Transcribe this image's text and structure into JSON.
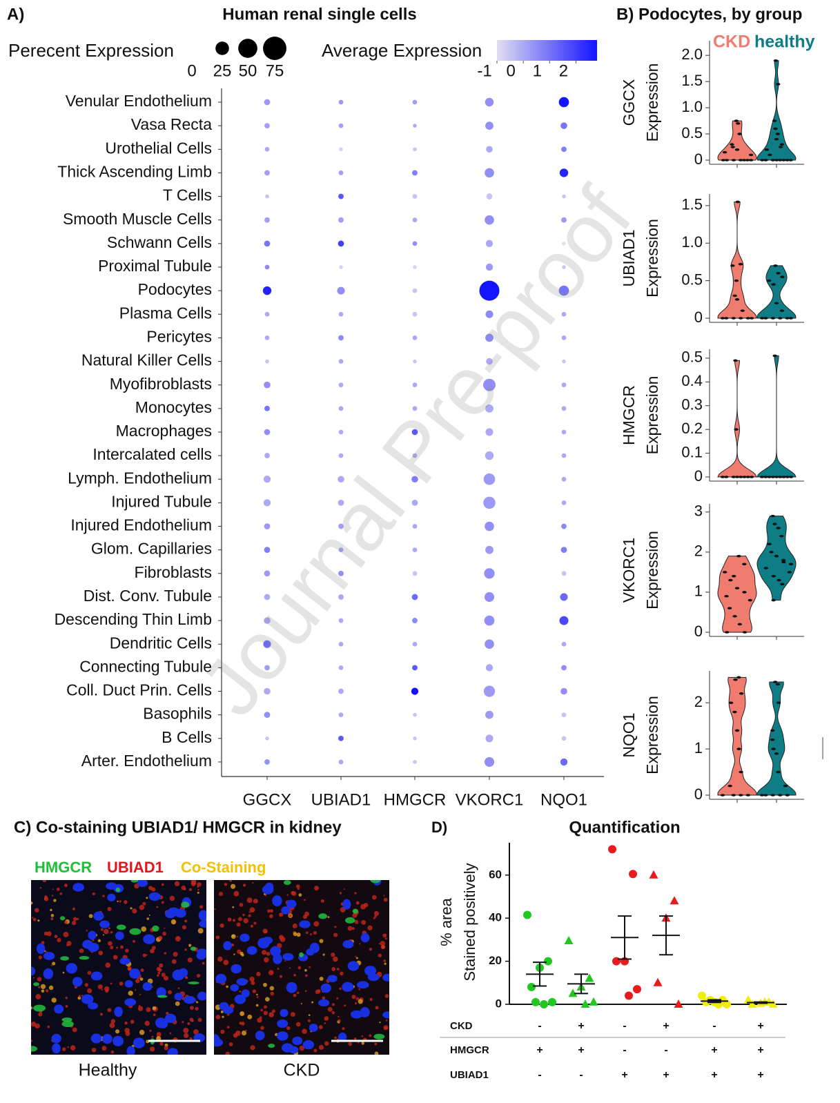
{
  "chart_data": [
    {
      "type": "dot",
      "panel": "A)",
      "title": "Human renal single cells",
      "categories": [
        "Venular Endothelium",
        "Vasa Recta",
        "Urothelial Cells",
        "Thick Ascending Limb",
        "T Cells",
        "Smooth Muscle Cells",
        "Schwann Cells",
        "Proximal Tubule",
        "Podocytes",
        "Plasma Cells",
        "Pericytes",
        "Natural Killer Cells",
        "Myofibroblasts",
        "Monocytes",
        "Macrophages",
        "Intercalated cells",
        "Lymph. Endothelium",
        "Injured Tubule",
        "Injured Endothelium",
        "Glom. Capillaries",
        "Fibroblasts",
        "Dist. Conv. Tubule",
        "Descending Thin Limb",
        "Dendritic Cells",
        "Connecting Tubule",
        "Coll. Duct Prin. Cells",
        "Basophils",
        "B Cells",
        "Arter. Endothelium"
      ],
      "series": [
        {
          "name": "GGCX",
          "values": [
            0.3,
            0.2,
            0,
            0.2,
            -0.5,
            0.2,
            1.0,
            0.6,
            2.5,
            0,
            0,
            -0.5,
            0.5,
            1.0,
            0.5,
            0,
            0,
            0,
            0.3,
            0.8,
            0.3,
            0,
            0,
            1.2,
            0.2,
            0,
            0.5,
            -0.5,
            0.4
          ],
          "sizes": [
            5,
            4,
            3,
            4,
            2,
            4,
            5,
            3,
            10,
            3,
            3,
            2,
            6,
            4,
            5,
            4,
            7,
            7,
            5,
            5,
            5,
            5,
            6,
            8,
            4,
            6,
            5,
            2,
            4
          ]
        },
        {
          "name": "UBIAD1",
          "values": [
            0.3,
            0.2,
            -0.8,
            0.2,
            1.5,
            0.2,
            2.0,
            -0.8,
            0.5,
            0,
            0.6,
            0,
            0,
            0,
            0,
            0,
            0,
            0,
            0.2,
            0.2,
            0.5,
            0,
            0,
            0,
            0,
            0,
            0,
            1.5,
            0
          ],
          "sizes": [
            3,
            3,
            2,
            3,
            4,
            4,
            5,
            2,
            8,
            3,
            4,
            3,
            3,
            3,
            3,
            3,
            6,
            5,
            4,
            3,
            4,
            4,
            3,
            3,
            3,
            4,
            3,
            4,
            3
          ]
        },
        {
          "name": "HMGCR",
          "values": [
            0.2,
            0,
            -0.5,
            0.8,
            -0.5,
            0,
            0.5,
            -0.8,
            -0.5,
            -0.5,
            0,
            -0.5,
            0,
            0,
            1.5,
            0,
            0.8,
            0,
            0,
            0,
            -0.5,
            1.2,
            0.6,
            0,
            1.5,
            2.8,
            -0.5,
            -0.5,
            -0.5
          ],
          "sizes": [
            3,
            2,
            2,
            4,
            3,
            3,
            3,
            2,
            3,
            3,
            3,
            2,
            3,
            3,
            5,
            3,
            6,
            5,
            3,
            3,
            3,
            5,
            4,
            3,
            4,
            7,
            2,
            2,
            2
          ]
        },
        {
          "name": "VKORC1",
          "values": [
            0.5,
            0.5,
            0,
            0.5,
            -0.5,
            0.5,
            0,
            0.3,
            2.8,
            0.6,
            0.6,
            0,
            0.5,
            0,
            0,
            0,
            0.3,
            0.3,
            0.5,
            0.3,
            0.5,
            0.5,
            0.5,
            0.5,
            0,
            0.3,
            0.3,
            0,
            0.5
          ],
          "sizes": [
            10,
            9,
            6,
            12,
            5,
            12,
            7,
            7,
            55,
            8,
            9,
            6,
            21,
            9,
            8,
            10,
            18,
            20,
            12,
            9,
            15,
            13,
            14,
            12,
            7,
            17,
            9,
            8,
            13
          ]
        },
        {
          "name": "NQO1",
          "values": [
            2.8,
            1.0,
            0.8,
            2.5,
            -0.5,
            0.3,
            -1,
            -0.5,
            1.0,
            0,
            0,
            -0.5,
            0,
            0,
            0,
            0,
            0,
            0,
            0.6,
            0.8,
            -0.5,
            1.2,
            1.8,
            0,
            0.5,
            0.5,
            -0.5,
            -0.5,
            1.2
          ],
          "sizes": [
            14,
            6,
            4,
            10,
            2,
            4,
            2,
            2,
            14,
            3,
            3,
            2,
            3,
            3,
            3,
            3,
            3,
            3,
            4,
            5,
            3,
            8,
            11,
            3,
            4,
            6,
            3,
            3,
            7
          ]
        }
      ],
      "size_legend": {
        "title": "Perecent Expression",
        "ticks": [
          0,
          25,
          50,
          75
        ]
      },
      "color_legend": {
        "title": "Average Expression",
        "clim": [
          -1,
          2.8
        ],
        "ticks": [
          -1,
          0,
          1,
          2
        ],
        "colors": [
          "#e2def0",
          "#1414ff"
        ]
      }
    },
    {
      "type": "violin",
      "title": "B) Podocytes, by group",
      "series": [
        {
          "name": "CKD",
          "color": "#f07b6f"
        },
        {
          "name": "healthy",
          "color": "#0e7d85"
        }
      ],
      "panels": [
        {
          "ylabel": [
            "GGCX",
            "Expression"
          ],
          "ylim": [
            0,
            2.2
          ],
          "yticks": [
            0,
            0.5,
            {
              "value": 1,
              "label": "1.0"
            },
            1.5,
            {
              "value": 2,
              "label": "2.0"
            }
          ],
          "groups": [
            [
              0,
              0,
              0,
              0,
              0,
              0,
              0,
              0.2,
              0.25,
              0.15,
              0.5,
              0.7,
              0.75,
              0.3,
              0.1
            ],
            [
              0,
              0,
              0,
              0,
              0,
              0,
              0,
              0,
              0.1,
              0.2,
              0.3,
              0.5,
              0.6,
              0.75,
              1.45,
              0.25,
              0.4,
              1.9
            ]
          ]
        },
        {
          "ylabel": [
            "UBIAD1",
            "Expression"
          ],
          "ylim": [
            0,
            1.6
          ],
          "yticks": [
            0,
            0.5,
            {
              "value": 1,
              "label": "1.0"
            },
            1.5
          ],
          "groups": [
            [
              0,
              0,
              0,
              0,
              0,
              0,
              0.1,
              0.25,
              0.3,
              0.7,
              0.72,
              1.55,
              0.5
            ],
            [
              0,
              0,
              0,
              0,
              0,
              0,
              0.1,
              0.2,
              0.45,
              0.5,
              0.55,
              0.6,
              0.7
            ]
          ]
        },
        {
          "ylabel": [
            "HMGCR",
            "Expression"
          ],
          "ylim": [
            0,
            0.52
          ],
          "yticks": [
            0,
            0.1,
            0.2,
            0.3,
            0.4,
            0.5
          ],
          "groups": [
            [
              0,
              0,
              0,
              0,
              0,
              0,
              0,
              0,
              0.2,
              0.49
            ],
            [
              0,
              0,
              0,
              0,
              0,
              0,
              0,
              0,
              0,
              0.51
            ]
          ]
        },
        {
          "ylabel": [
            "VKORC1",
            "Expression"
          ],
          "ylim": [
            0,
            3.1
          ],
          "yticks": [
            0,
            1,
            2,
            3
          ],
          "groups": [
            [
              0,
              0,
              0.2,
              0.4,
              0.6,
              0.8,
              1.0,
              1.1,
              1.3,
              1.5,
              1.7,
              1.9,
              1.4,
              0.9
            ],
            [
              0.8,
              1.2,
              1.3,
              1.4,
              1.6,
              1.7,
              1.8,
              1.9,
              2.0,
              2.2,
              2.4,
              2.6,
              2.7,
              2.9,
              1.5,
              1.75
            ]
          ]
        },
        {
          "ylabel": [
            "NQO1",
            "Expression"
          ],
          "ylim": [
            0,
            2.6
          ],
          "yticks": [
            0,
            1,
            2
          ],
          "groups": [
            [
              0,
              0,
              0,
              0,
              0.2,
              0.5,
              1.0,
              1.4,
              1.8,
              2.0,
              2.2,
              2.55,
              2.5
            ],
            [
              0,
              0,
              0,
              0,
              0,
              0.2,
              0.5,
              0.9,
              1.0,
              1.4,
              2.0,
              2.4,
              2.45,
              1.2
            ]
          ]
        }
      ]
    },
    {
      "type": "strip",
      "panel": "D)",
      "title": "Quantification",
      "ylabel": [
        "% area",
        "Stained positively"
      ],
      "ylim": [
        0,
        75
      ],
      "yticks": [
        0,
        20,
        40,
        60
      ],
      "groups": [
        {
          "color": "#22c722",
          "marker": "circle",
          "values": [
            41.5,
            20,
            17,
            8,
            1,
            0,
            1
          ],
          "mean": 14,
          "sem": 5.5
        },
        {
          "color": "#22c722",
          "marker": "triangle",
          "values": [
            29.5,
            12,
            8,
            5,
            1,
            0
          ],
          "mean": 9.5,
          "sem": 4.5
        },
        {
          "color": "#e81c1c",
          "marker": "circle",
          "values": [
            72,
            60.5,
            20,
            20,
            7,
            4
          ],
          "mean": 31,
          "sem": 10
        },
        {
          "color": "#e81c1c",
          "marker": "triangle",
          "values": [
            60,
            48,
            40,
            10,
            0
          ],
          "mean": 32,
          "sem": 9
        },
        {
          "color": "#eeee0a",
          "marker": "circle",
          "values": [
            4,
            2,
            1,
            1,
            0,
            0,
            2
          ],
          "mean": 1.5,
          "sem": 0.6
        },
        {
          "color": "#eeee0a",
          "marker": "triangle",
          "values": [
            2,
            1,
            0.5,
            0,
            0,
            1
          ],
          "mean": 0.8,
          "sem": 0.3
        }
      ],
      "conditions": [
        {
          "label": "CKD",
          "signs": [
            "-",
            "+",
            "-",
            "+",
            "-",
            "+"
          ]
        },
        {
          "label": "HMGCR",
          "signs": [
            "+",
            "+",
            "-",
            "-",
            "+",
            "+"
          ]
        },
        {
          "label": "UBIAD1",
          "signs": [
            "-",
            "-",
            "+",
            "+",
            "+",
            "+"
          ]
        }
      ]
    }
  ],
  "panel_c": {
    "title": "C)  Co-staining UBIAD1/ HMGCR in kidney",
    "legend": [
      {
        "label": "HMGCR",
        "color": "#1fbf3a"
      },
      {
        "label": "UBIAD1",
        "color": "#e3141c"
      },
      {
        "label": "Co-Staining",
        "color": "#f2c200"
      }
    ],
    "images": [
      {
        "caption": "Healthy"
      },
      {
        "caption": "CKD"
      }
    ]
  },
  "watermark": "Journal Pre-proof"
}
